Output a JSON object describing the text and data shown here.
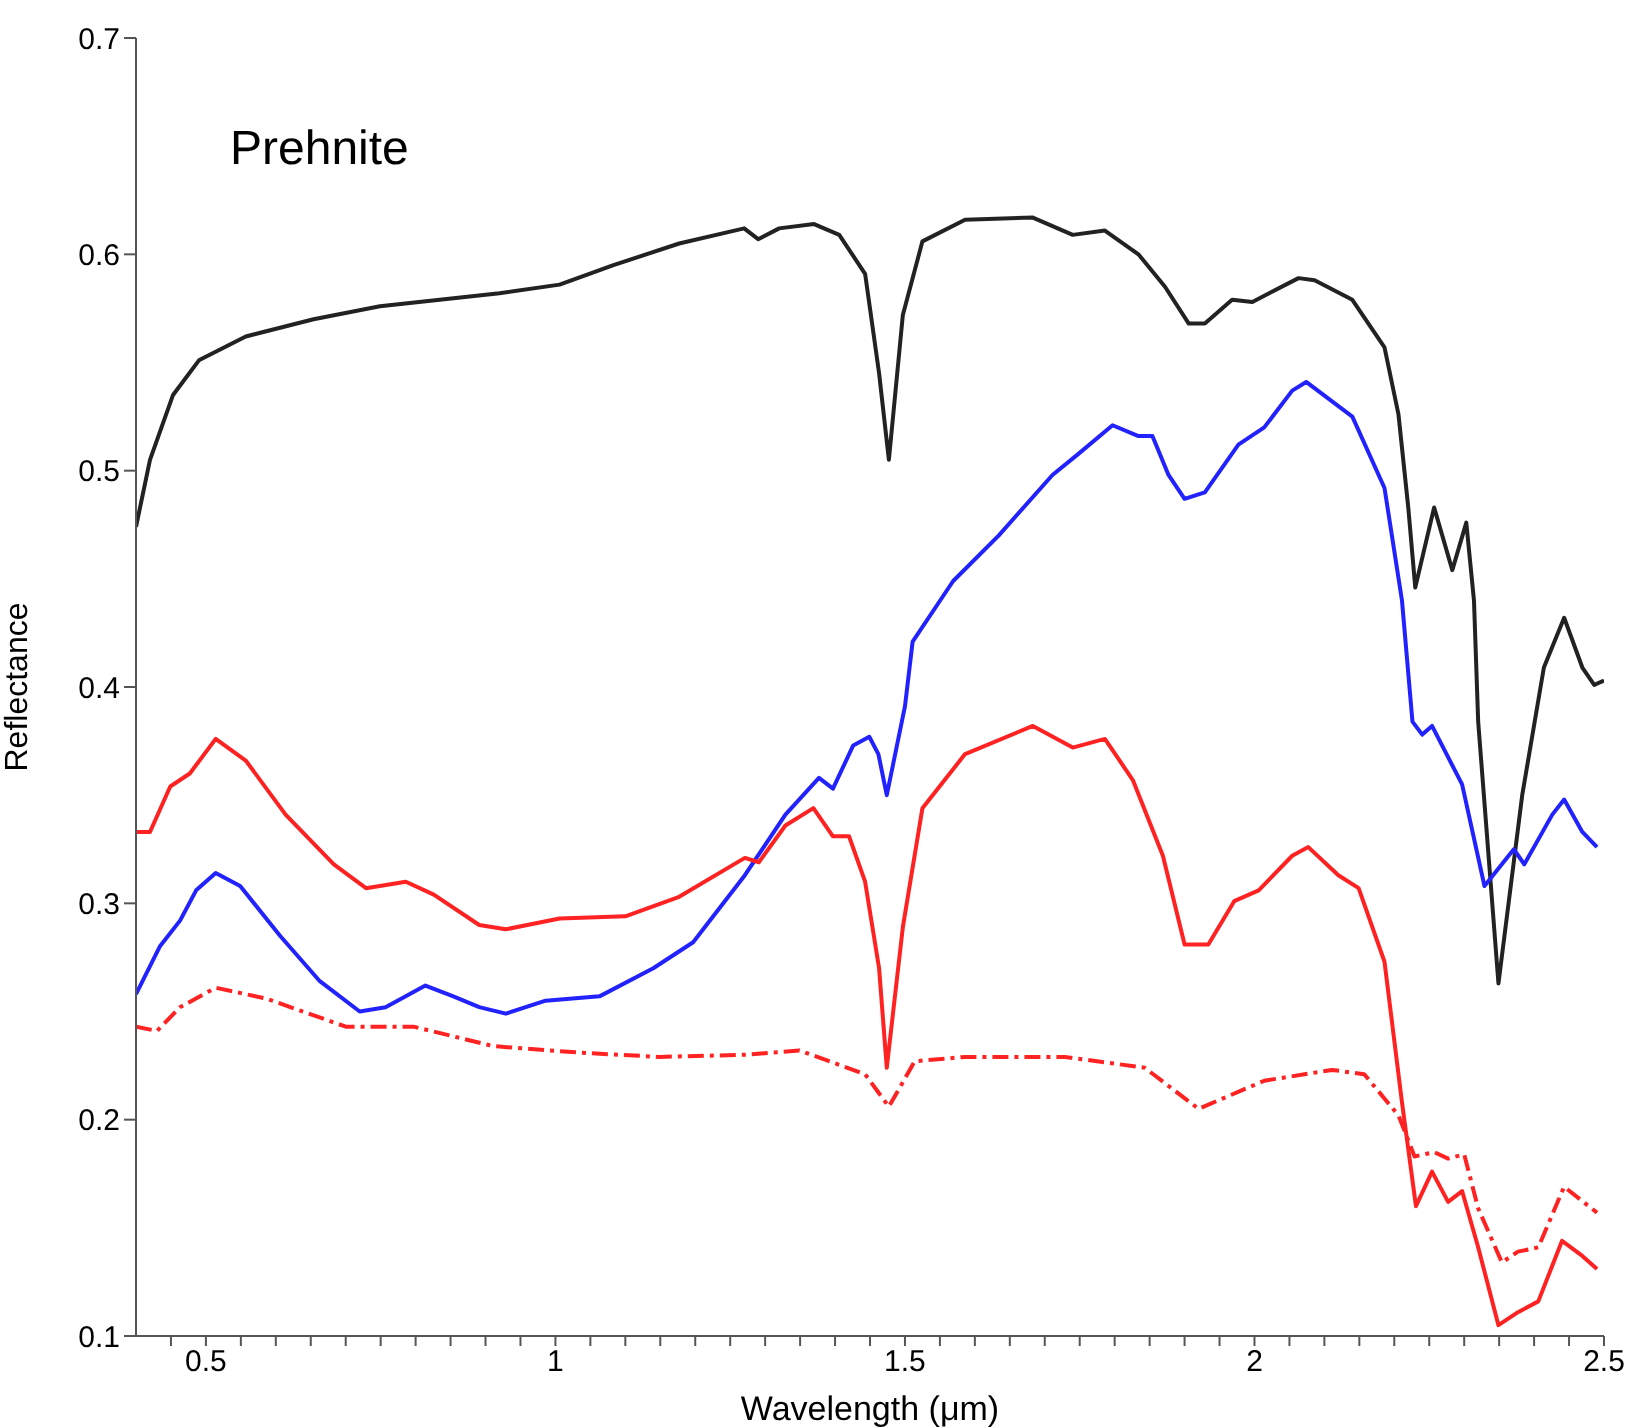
{
  "chart_data": {
    "type": "line",
    "title": "Prehnite",
    "xlabel": "Wavelength (μm)",
    "ylabel": "Reflectance",
    "xlim": [
      0.4,
      2.5
    ],
    "ylim": [
      0.1,
      0.7
    ],
    "xticks": [
      {
        "value": 0.45,
        "label": null
      },
      0.5,
      {
        "value": 0.55,
        "label": null
      },
      {
        "value": 0.6,
        "label": null
      },
      {
        "value": 0.65,
        "label": null
      },
      {
        "value": 0.7,
        "label": null
      },
      {
        "value": 0.75,
        "label": null
      },
      {
        "value": 0.8,
        "label": null
      },
      {
        "value": 0.85,
        "label": null
      },
      {
        "value": 0.9,
        "label": null
      },
      {
        "value": 0.95,
        "label": null
      },
      1,
      {
        "value": 1.05,
        "label": null
      },
      {
        "value": 1.1,
        "label": null
      },
      {
        "value": 1.15,
        "label": null
      },
      {
        "value": 1.2,
        "label": null
      },
      {
        "value": 1.25,
        "label": null
      },
      {
        "value": 1.3,
        "label": null
      },
      {
        "value": 1.35,
        "label": null
      },
      {
        "value": 1.4,
        "label": null
      },
      {
        "value": 1.45,
        "label": null
      },
      1.5,
      {
        "value": 1.55,
        "label": null
      },
      {
        "value": 1.6,
        "label": null
      },
      {
        "value": 1.65,
        "label": null
      },
      {
        "value": 1.7,
        "label": null
      },
      {
        "value": 1.75,
        "label": null
      },
      {
        "value": 1.8,
        "label": null
      },
      {
        "value": 1.85,
        "label": null
      },
      {
        "value": 1.9,
        "label": null
      },
      {
        "value": 1.95,
        "label": null
      },
      2,
      {
        "value": 2.05,
        "label": null
      },
      {
        "value": 2.1,
        "label": null
      },
      {
        "value": 2.15,
        "label": null
      },
      {
        "value": 2.2,
        "label": null
      },
      {
        "value": 2.25,
        "label": null
      },
      {
        "value": 2.3,
        "label": null
      },
      {
        "value": 2.35,
        "label": null
      },
      {
        "value": 2.4,
        "label": null
      },
      {
        "value": 2.45,
        "label": null
      },
      2.5
    ],
    "yticks": [
      0.1,
      0.2,
      0.3,
      0.4,
      0.5,
      0.6,
      0.7
    ],
    "grid": false,
    "legend": false,
    "marker": "none",
    "series": [
      {
        "color": "#222222",
        "line_style": "solid",
        "x": [
          0.4,
          0.42,
          0.453,
          0.49,
          0.557,
          0.654,
          0.749,
          0.92,
          1.006,
          1.083,
          1.177,
          1.27,
          1.29,
          1.32,
          1.37,
          1.406,
          1.443,
          1.463,
          1.477,
          1.497,
          1.525,
          1.586,
          1.683,
          1.74,
          1.786,
          1.834,
          1.872,
          1.906,
          1.929,
          1.968,
          1.997,
          2.063,
          2.086,
          2.14,
          2.186,
          2.206,
          2.22,
          2.23,
          2.257,
          2.283,
          2.303,
          2.314,
          2.32,
          2.349,
          2.383,
          2.414,
          2.443,
          2.469,
          2.486,
          2.5
        ],
        "values": [
          0.474,
          0.505,
          0.535,
          0.551,
          0.562,
          0.57,
          0.576,
          0.582,
          0.586,
          0.595,
          0.605,
          0.612,
          0.607,
          0.612,
          0.614,
          0.609,
          0.591,
          0.545,
          0.505,
          0.572,
          0.606,
          0.616,
          0.617,
          0.609,
          0.611,
          0.6,
          0.585,
          0.568,
          0.568,
          0.579,
          0.578,
          0.589,
          0.588,
          0.579,
          0.557,
          0.526,
          0.483,
          0.446,
          0.483,
          0.454,
          0.476,
          0.44,
          0.384,
          0.263,
          0.35,
          0.409,
          0.432,
          0.409,
          0.401,
          0.403
        ]
      },
      {
        "color": "#2222ff",
        "line_style": "solid",
        "x": [
          0.4,
          0.434,
          0.463,
          0.486,
          0.514,
          0.549,
          0.606,
          0.663,
          0.72,
          0.757,
          0.814,
          0.854,
          0.891,
          0.929,
          0.986,
          1.063,
          1.14,
          1.197,
          1.271,
          1.329,
          1.377,
          1.397,
          1.426,
          1.449,
          1.462,
          1.474,
          1.5,
          1.511,
          1.569,
          1.634,
          1.711,
          1.749,
          1.797,
          1.834,
          1.854,
          1.877,
          1.9,
          1.929,
          1.977,
          2.014,
          2.054,
          2.074,
          2.111,
          2.14,
          2.186,
          2.211,
          2.226,
          2.24,
          2.254,
          2.297,
          2.329,
          2.371,
          2.386,
          2.426,
          2.443,
          2.469,
          2.49
        ],
        "values": [
          0.258,
          0.28,
          0.292,
          0.306,
          0.314,
          0.308,
          0.285,
          0.264,
          0.25,
          0.252,
          0.262,
          0.257,
          0.252,
          0.249,
          0.255,
          0.257,
          0.27,
          0.282,
          0.313,
          0.341,
          0.358,
          0.353,
          0.373,
          0.377,
          0.369,
          0.35,
          0.391,
          0.421,
          0.449,
          0.47,
          0.498,
          0.508,
          0.521,
          0.516,
          0.516,
          0.498,
          0.487,
          0.49,
          0.512,
          0.52,
          0.537,
          0.541,
          0.532,
          0.525,
          0.492,
          0.44,
          0.384,
          0.378,
          0.382,
          0.355,
          0.308,
          0.325,
          0.318,
          0.341,
          0.348,
          0.333,
          0.326
        ]
      },
      {
        "color": "#ff2222",
        "line_style": "solid",
        "x": [
          0.4,
          0.42,
          0.449,
          0.477,
          0.514,
          0.557,
          0.614,
          0.683,
          0.729,
          0.786,
          0.826,
          0.891,
          0.929,
          1.006,
          1.1,
          1.177,
          1.271,
          1.291,
          1.329,
          1.369,
          1.397,
          1.42,
          1.443,
          1.463,
          1.474,
          1.497,
          1.525,
          1.586,
          1.683,
          1.74,
          1.786,
          1.826,
          1.869,
          1.9,
          1.934,
          1.971,
          2.006,
          2.054,
          2.077,
          2.12,
          2.149,
          2.186,
          2.211,
          2.231,
          2.254,
          2.277,
          2.297,
          2.32,
          2.349,
          2.377,
          2.406,
          2.44,
          2.469,
          2.49
        ],
        "values": [
          0.333,
          0.333,
          0.354,
          0.36,
          0.376,
          0.366,
          0.341,
          0.318,
          0.307,
          0.31,
          0.304,
          0.29,
          0.288,
          0.293,
          0.294,
          0.303,
          0.321,
          0.319,
          0.336,
          0.344,
          0.331,
          0.331,
          0.31,
          0.27,
          0.224,
          0.289,
          0.344,
          0.369,
          0.382,
          0.372,
          0.376,
          0.357,
          0.322,
          0.281,
          0.281,
          0.301,
          0.306,
          0.322,
          0.326,
          0.313,
          0.307,
          0.273,
          0.208,
          0.16,
          0.176,
          0.162,
          0.167,
          0.141,
          0.105,
          0.111,
          0.116,
          0.144,
          0.137,
          0.131
        ]
      },
      {
        "color": "#ff2222",
        "line_style": "dashed",
        "x": [
          0.4,
          0.43,
          0.463,
          0.514,
          0.586,
          0.7,
          0.797,
          0.911,
          1.034,
          1.149,
          1.271,
          1.349,
          1.443,
          1.477,
          1.514,
          1.586,
          1.729,
          1.843,
          1.92,
          2.014,
          2.111,
          2.157,
          2.206,
          2.229,
          2.257,
          2.277,
          2.3,
          2.32,
          2.354,
          2.377,
          2.406,
          2.443,
          2.49
        ],
        "values": [
          0.243,
          0.241,
          0.252,
          0.261,
          0.256,
          0.243,
          0.243,
          0.234,
          0.231,
          0.229,
          0.23,
          0.232,
          0.221,
          0.206,
          0.227,
          0.229,
          0.229,
          0.224,
          0.205,
          0.218,
          0.223,
          0.221,
          0.202,
          0.183,
          0.185,
          0.182,
          0.184,
          0.159,
          0.134,
          0.139,
          0.141,
          0.169,
          0.157
        ]
      }
    ]
  }
}
